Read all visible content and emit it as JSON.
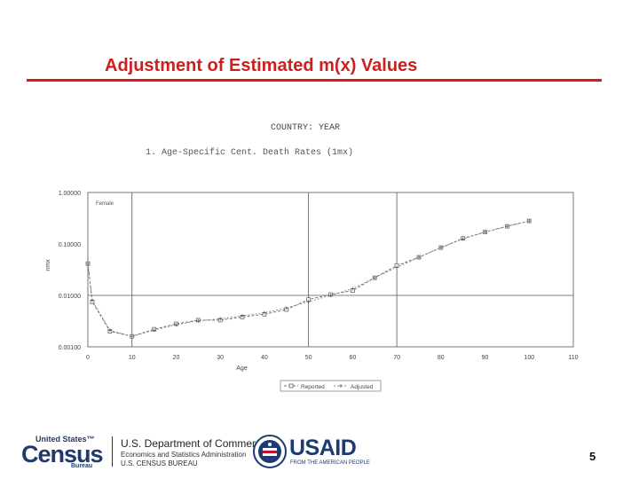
{
  "slide": {
    "title": "Adjustment of Estimated m(x) Values",
    "page_number": "5",
    "accent_color": "#e0141e",
    "title_color": "#cc1f1f"
  },
  "chart_data": {
    "type": "line",
    "title": "COUNTRY: YEAR",
    "subtitle": "1. Age-Specific Cent. Death Rates (1mx)",
    "xlabel": "Age",
    "ylabel": "nmx",
    "panel_label": "Female",
    "scale": "log",
    "xlim": [
      0,
      110
    ],
    "ylim": [
      0.001,
      1.0
    ],
    "x_ticks": [
      "0",
      "10",
      "20",
      "30",
      "40",
      "50",
      "60",
      "70",
      "80",
      "90",
      "100",
      "110"
    ],
    "y_ticks": [
      "0.00100",
      "0.01000",
      "0.10000",
      "1.00000"
    ],
    "grid": "x at 10, 50, 70; y at 0.01",
    "legend_placement": "bottom-center",
    "series": [
      {
        "name": "Reported",
        "x": [
          0,
          1,
          5,
          10,
          15,
          20,
          25,
          30,
          35,
          40,
          45,
          50,
          55,
          60,
          65,
          70,
          75,
          80,
          85,
          90,
          95,
          100
        ],
        "y": [
          0.0415,
          0.0075,
          0.002,
          0.0016,
          0.0022,
          0.0028,
          0.0033,
          0.0033,
          0.0038,
          0.0043,
          0.0053,
          0.0083,
          0.0104,
          0.0124,
          0.022,
          0.038,
          0.055,
          0.085,
          0.128,
          0.17,
          0.22,
          0.28
        ]
      },
      {
        "name": "Adjusted",
        "x": [
          0,
          1,
          5,
          10,
          15,
          20,
          25,
          30,
          35,
          40,
          45,
          50,
          55,
          60,
          65,
          70,
          75,
          80,
          85,
          90,
          95,
          100
        ],
        "y": [
          0.0415,
          0.008,
          0.0021,
          0.0016,
          0.0021,
          0.0027,
          0.0032,
          0.0035,
          0.004,
          0.0046,
          0.0057,
          0.0075,
          0.01,
          0.0135,
          0.022,
          0.035,
          0.055,
          0.085,
          0.125,
          0.17,
          0.22,
          0.28
        ]
      }
    ]
  },
  "footer": {
    "census_top": "United States™",
    "census_word": "Census",
    "census_bureau": "Bureau",
    "doc_line1": "U.S. Department of Commerce",
    "doc_line2": "Economics and Statistics Administration",
    "doc_line3": "U.S. CENSUS BUREAU",
    "usaid_word": "USAID",
    "usaid_tag": "FROM THE AMERICAN PEOPLE",
    "census_color": "#1f3a6b",
    "usaid_color": "#1d3b72"
  }
}
